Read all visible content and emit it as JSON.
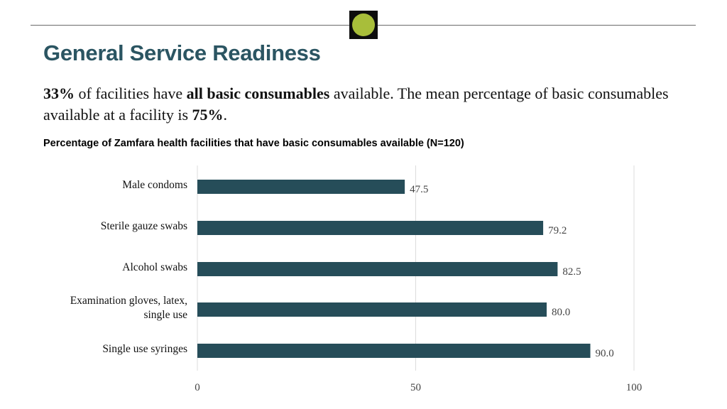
{
  "header": {
    "title": "General Service Readiness",
    "logo_colors": {
      "box": "#0d0d0d",
      "dot": "#a8be3a"
    }
  },
  "summary": {
    "pct_all": "33%",
    "text_1": " of facilities have ",
    "emphasis": "all basic consumables",
    "text_2": " available. The mean percentage of basic consumables available at a facility is ",
    "pct_mean": "75%",
    "text_3": "."
  },
  "chart_data": {
    "type": "bar",
    "orientation": "horizontal",
    "title": "Percentage of Zamfara health facilities that have basic consumables available (N=120)",
    "categories": [
      [
        "Male condoms"
      ],
      [
        "Sterile gauze swabs"
      ],
      [
        "Alcohol swabs"
      ],
      [
        "Examination gloves, latex,",
        "single use"
      ],
      [
        "Single use syringes"
      ]
    ],
    "values": [
      47.5,
      79.2,
      82.5,
      80.0,
      90.0
    ],
    "value_labels": [
      "47.5",
      "79.2",
      "82.5",
      "80.0",
      "90.0"
    ],
    "xlim": [
      0,
      100
    ],
    "xticks": [
      "0",
      "50",
      "100"
    ],
    "bar_color": "#264d59",
    "grid": true
  }
}
